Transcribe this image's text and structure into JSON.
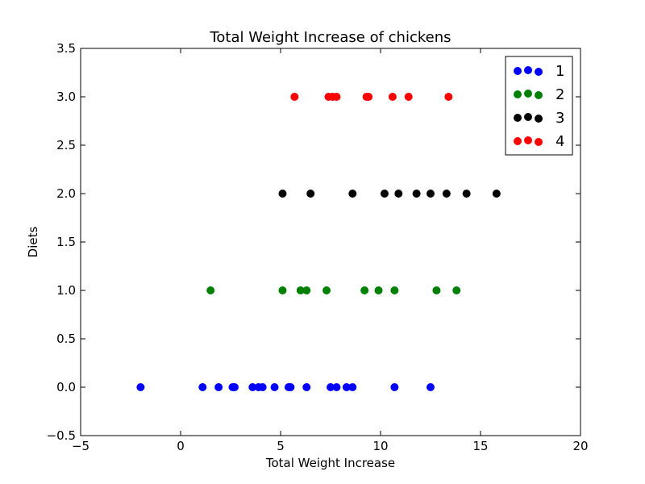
{
  "chart_data": {
    "type": "scatter",
    "title": "Total Weight Increase of chickens",
    "xlabel": "Total Weight Increase",
    "ylabel": "Diets",
    "xlim": [
      -5,
      20
    ],
    "ylim": [
      -0.5,
      3.5
    ],
    "xticks": [
      "-5",
      "0",
      "5",
      "10",
      "15",
      "20"
    ],
    "yticks": [
      "-0.5",
      "0.0",
      "0.5",
      "1.0",
      "1.5",
      "2.0",
      "2.5",
      "3.0",
      "3.5"
    ],
    "grid": false,
    "legend_position": "top-right",
    "series": [
      {
        "name": "1",
        "color": "#0000ff",
        "y": 0.0,
        "x": [
          -2.0,
          1.1,
          1.9,
          2.6,
          2.7,
          3.6,
          3.9,
          4.1,
          4.7,
          5.4,
          5.5,
          6.3,
          7.5,
          7.8,
          8.3,
          8.6,
          10.7,
          12.5
        ]
      },
      {
        "name": "2",
        "color": "#008000",
        "y": 1.0,
        "x": [
          1.5,
          5.1,
          6.0,
          6.3,
          7.3,
          9.2,
          9.9,
          10.7,
          12.8,
          13.8
        ]
      },
      {
        "name": "3",
        "color": "#000000",
        "y": 2.0,
        "x": [
          5.1,
          6.5,
          8.6,
          10.2,
          10.9,
          11.8,
          12.5,
          13.3,
          14.3,
          15.8
        ]
      },
      {
        "name": "4",
        "color": "#ff0000",
        "y": 3.0,
        "x": [
          5.7,
          7.4,
          7.6,
          7.8,
          9.3,
          9.4,
          10.6,
          11.4,
          13.4
        ]
      }
    ]
  }
}
